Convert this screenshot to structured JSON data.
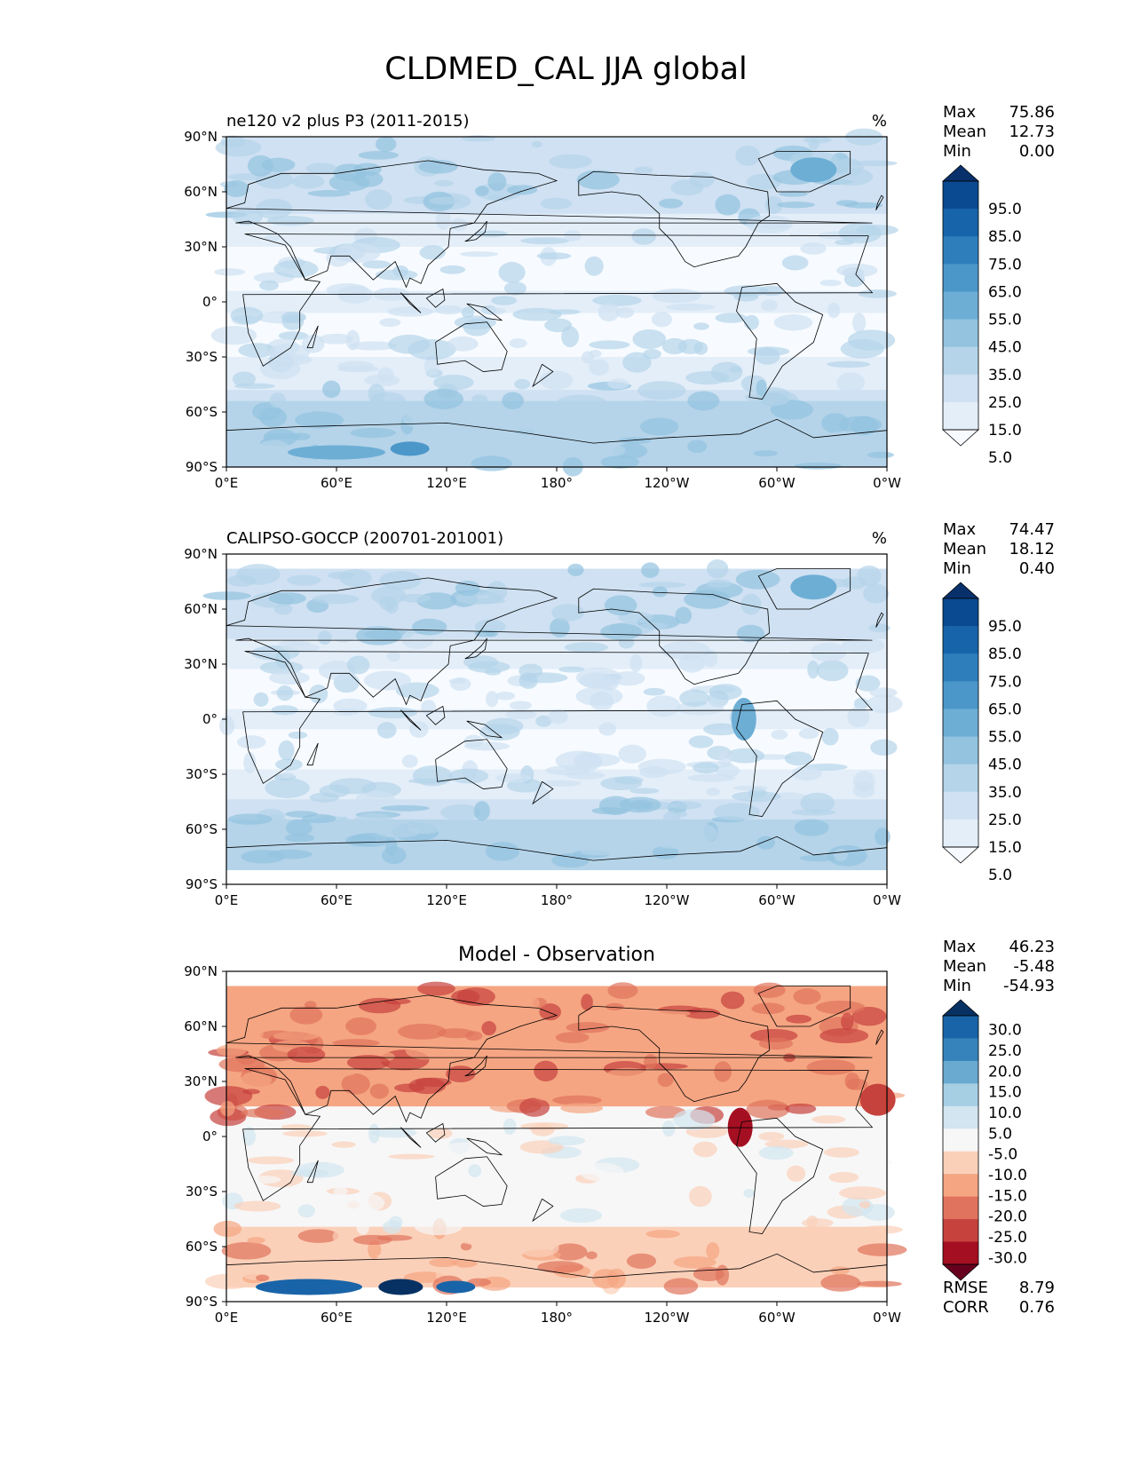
{
  "figure": {
    "title": "CLDMED_CAL JJA global",
    "x_ticks": [
      "0°E",
      "60°E",
      "120°E",
      "180°",
      "120°W",
      "60°W",
      "0°W"
    ],
    "y_ticks": [
      "90°N",
      "60°N",
      "30°N",
      "0°",
      "30°S",
      "60°S",
      "90°S"
    ]
  },
  "palettes": {
    "blues": [
      "#f7fbff",
      "#e3eef9",
      "#cfe1f2",
      "#b5d4e9",
      "#93c3df",
      "#6daed5",
      "#4b97c9",
      "#2f7ebc",
      "#1864aa",
      "#0a4a90",
      "#08306b"
    ],
    "rdbu": [
      "#67001f",
      "#a50f22",
      "#c6423d",
      "#e0735d",
      "#f5a582",
      "#fbd0b9",
      "#f7f7f7",
      "#d2e5f0",
      "#a6cfe4",
      "#6aa9d0",
      "#3683bb",
      "#1964a8",
      "#073163"
    ],
    "coastline": "#000000"
  },
  "panels": [
    {
      "id": "test",
      "left_title": "ne120 v2 plus P3 (2011-2015)",
      "center_title": "",
      "units": "%",
      "stats": [
        [
          "Max",
          "75.86"
        ],
        [
          "Mean",
          "12.73"
        ],
        [
          "Min",
          "0.00"
        ]
      ],
      "colorbar": {
        "palette": "blues",
        "labels": [
          "95.0",
          "85.0",
          "75.0",
          "65.0",
          "55.0",
          "45.0",
          "35.0",
          "25.0",
          "15.0",
          "5.0"
        ]
      },
      "extra_stats": []
    },
    {
      "id": "reference",
      "left_title": "CALIPSO-GOCCP (200701-201001)",
      "center_title": "",
      "units": "%",
      "stats": [
        [
          "Max",
          "74.47"
        ],
        [
          "Mean",
          "18.12"
        ],
        [
          "Min",
          "0.40"
        ]
      ],
      "colorbar": {
        "palette": "blues",
        "labels": [
          "95.0",
          "85.0",
          "75.0",
          "65.0",
          "55.0",
          "45.0",
          "35.0",
          "25.0",
          "15.0",
          "5.0"
        ]
      },
      "extra_stats": []
    },
    {
      "id": "difference",
      "left_title": "",
      "center_title": "Model - Observation",
      "units": "",
      "stats": [
        [
          "Max",
          "46.23"
        ],
        [
          "Mean",
          "-5.48"
        ],
        [
          "Min",
          "-54.93"
        ]
      ],
      "colorbar": {
        "palette": "rdbu",
        "labels": [
          "30.0",
          "25.0",
          "20.0",
          "15.0",
          "10.0",
          "5.0",
          "-5.0",
          "-10.0",
          "-15.0",
          "-20.0",
          "-25.0",
          "-30.0"
        ]
      },
      "extra_stats": [
        [
          "RMSE",
          "8.79"
        ],
        [
          "CORR",
          "0.76"
        ]
      ]
    }
  ]
}
